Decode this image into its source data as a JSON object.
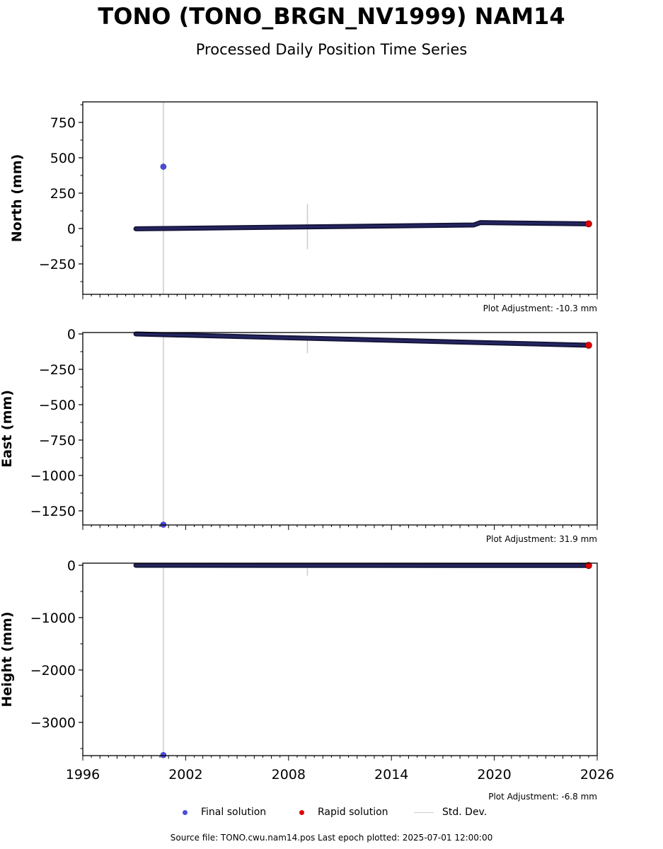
{
  "chart_data": {
    "type": "scatter",
    "title": "TONO (TONO_BRGN_NV1999) NAM14",
    "subtitle": "Processed Daily Position Time Series",
    "xlim": [
      1996,
      2026
    ],
    "xticks": [
      1996,
      2002,
      2008,
      2014,
      2020,
      2026
    ],
    "panels": [
      {
        "ylabel": "North (mm)",
        "ylim": [
          -465,
          895
        ],
        "yticks": [
          750,
          500,
          250,
          0,
          -250
        ],
        "adjustment": "Plot Adjustment: -10.3 mm",
        "trend": [
          [
            1999.1,
            -2
          ],
          [
            2018.8,
            25
          ],
          [
            2019.2,
            42
          ],
          [
            2025.5,
            33
          ]
        ],
        "outliers": [
          {
            "x": 2000.7,
            "y": 437
          }
        ],
        "std_dev_bars": [
          {
            "x": 2000.7,
            "low": -465,
            "high": 895
          },
          {
            "x": 2009.1,
            "low": -145,
            "high": 175
          }
        ],
        "rapid_end": {
          "x": 2025.5,
          "y": 33
        }
      },
      {
        "ylabel": "East (mm)",
        "ylim": [
          -1350,
          10
        ],
        "yticks": [
          0,
          -250,
          -500,
          -750,
          -1000,
          -1250
        ],
        "adjustment": "Plot Adjustment: 31.9 mm",
        "trend": [
          [
            1999.1,
            0
          ],
          [
            2025.5,
            -80
          ]
        ],
        "outliers": [
          {
            "x": 2000.7,
            "y": -1348
          }
        ],
        "std_dev_bars": [
          {
            "x": 2000.7,
            "low": -1350,
            "high": 10
          },
          {
            "x": 2009.1,
            "low": -135,
            "high": -15
          }
        ],
        "rapid_end": {
          "x": 2025.5,
          "y": -80
        }
      },
      {
        "ylabel": "Height (mm)",
        "ylim": [
          -3635,
          40
        ],
        "yticks": [
          0,
          -1000,
          -2000,
          -3000
        ],
        "adjustment": "Plot Adjustment: -6.8 mm",
        "trend": [
          [
            1999.1,
            0
          ],
          [
            2025.5,
            -5
          ]
        ],
        "outliers": [
          {
            "x": 2000.7,
            "y": -3625
          }
        ],
        "std_dev_bars": [
          {
            "x": 2000.7,
            "low": -3635,
            "high": 40
          },
          {
            "x": 2009.1,
            "low": -200,
            "high": 20
          }
        ],
        "rapid_end": {
          "x": 2025.5,
          "y": -5
        }
      }
    ],
    "legend": {
      "final": "Final solution",
      "rapid": "Rapid solution",
      "std": "Std. Dev."
    },
    "colors": {
      "final": "#4b4bdc",
      "final_edge": "#15153a",
      "rapid": "#e00000",
      "std": "#cccccc"
    }
  },
  "source": "Source file: TONO.cwu.nam14.pos  Last epoch plotted: 2025-07-01 12:00:00"
}
